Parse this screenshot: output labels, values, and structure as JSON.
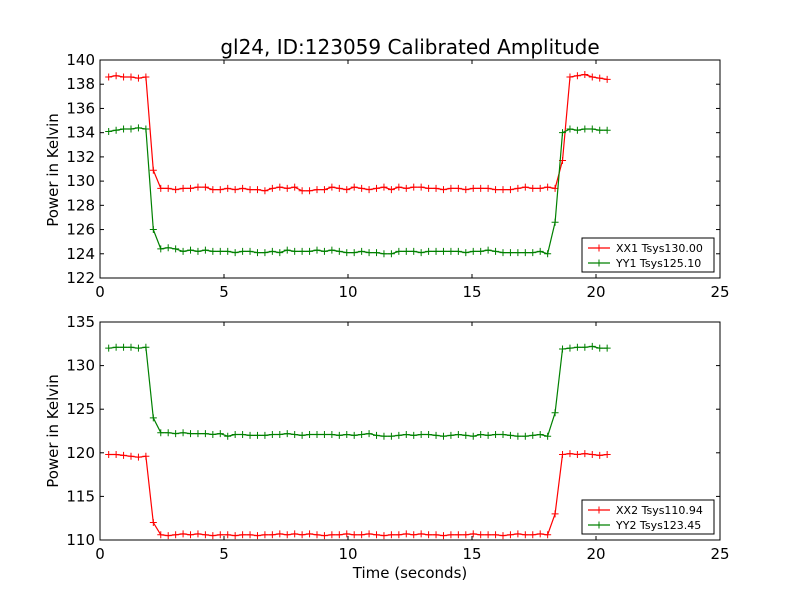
{
  "title": "gl24, ID:123059 Calibrated Amplitude",
  "colors": {
    "red": "#ff0000",
    "green": "#008000"
  },
  "chart_data": [
    {
      "type": "line",
      "title": "gl24, ID:123059 Calibrated Amplitude",
      "xlabel": "",
      "ylabel": "Power in Kelvin",
      "xlim": [
        0,
        25
      ],
      "ylim": [
        122,
        140
      ],
      "xticks": [
        0,
        5,
        10,
        15,
        20,
        25
      ],
      "yticks": [
        122,
        124,
        126,
        128,
        130,
        132,
        134,
        136,
        138,
        140
      ],
      "grid": false,
      "legend": "bottom-right",
      "x": [
        0.35,
        0.65,
        0.95,
        1.25,
        1.55,
        1.85,
        2.15,
        2.45,
        2.75,
        3.05,
        3.35,
        3.65,
        3.95,
        4.25,
        4.55,
        4.85,
        5.15,
        5.45,
        5.75,
        6.05,
        6.35,
        6.65,
        6.95,
        7.25,
        7.55,
        7.85,
        8.15,
        8.45,
        8.75,
        9.05,
        9.35,
        9.65,
        9.95,
        10.25,
        10.55,
        10.85,
        11.15,
        11.45,
        11.75,
        12.05,
        12.35,
        12.65,
        12.95,
        13.25,
        13.55,
        13.85,
        14.15,
        14.45,
        14.75,
        15.05,
        15.35,
        15.65,
        15.95,
        16.25,
        16.55,
        16.85,
        17.15,
        17.45,
        17.75,
        18.05,
        18.35,
        18.65,
        18.95,
        19.25,
        19.55,
        19.85,
        20.15,
        20.45
      ],
      "series": [
        {
          "name": "XX1 Tsys130.00",
          "color": "#ff0000",
          "values": [
            138.6,
            138.7,
            138.6,
            138.6,
            138.5,
            138.6,
            130.9,
            129.4,
            129.4,
            129.3,
            129.4,
            129.4,
            129.5,
            129.5,
            129.3,
            129.3,
            129.4,
            129.3,
            129.4,
            129.3,
            129.3,
            129.2,
            129.4,
            129.5,
            129.4,
            129.5,
            129.2,
            129.2,
            129.3,
            129.3,
            129.5,
            129.4,
            129.3,
            129.5,
            129.4,
            129.3,
            129.4,
            129.5,
            129.3,
            129.5,
            129.4,
            129.5,
            129.5,
            129.4,
            129.4,
            129.3,
            129.4,
            129.4,
            129.3,
            129.4,
            129.4,
            129.4,
            129.3,
            129.3,
            129.3,
            129.4,
            129.5,
            129.4,
            129.4,
            129.5,
            129.4,
            131.7,
            138.6,
            138.7,
            138.8,
            138.6,
            138.5,
            138.4
          ]
        },
        {
          "name": "YY1 Tsys125.10",
          "color": "#008000",
          "values": [
            134.1,
            134.2,
            134.3,
            134.3,
            134.4,
            134.3,
            126.0,
            124.4,
            124.5,
            124.4,
            124.2,
            124.3,
            124.2,
            124.3,
            124.2,
            124.2,
            124.2,
            124.1,
            124.2,
            124.2,
            124.1,
            124.1,
            124.2,
            124.1,
            124.3,
            124.2,
            124.2,
            124.2,
            124.3,
            124.2,
            124.3,
            124.2,
            124.1,
            124.1,
            124.2,
            124.1,
            124.1,
            124.0,
            124.0,
            124.2,
            124.2,
            124.2,
            124.1,
            124.2,
            124.2,
            124.2,
            124.2,
            124.2,
            124.1,
            124.2,
            124.2,
            124.3,
            124.2,
            124.1,
            124.1,
            124.1,
            124.1,
            124.1,
            124.2,
            124.0,
            126.6,
            134.0,
            134.3,
            134.2,
            134.3,
            134.3,
            134.2,
            134.2
          ]
        }
      ]
    },
    {
      "type": "line",
      "title": "",
      "xlabel": "Time (seconds)",
      "ylabel": "Power in Kelvin",
      "xlim": [
        0,
        25
      ],
      "ylim": [
        110,
        135
      ],
      "xticks": [
        0,
        5,
        10,
        15,
        20,
        25
      ],
      "yticks": [
        110,
        115,
        120,
        125,
        130,
        135
      ],
      "grid": false,
      "legend": "bottom-right",
      "x": [
        0.35,
        0.65,
        0.95,
        1.25,
        1.55,
        1.85,
        2.15,
        2.45,
        2.75,
        3.05,
        3.35,
        3.65,
        3.95,
        4.25,
        4.55,
        4.85,
        5.15,
        5.45,
        5.75,
        6.05,
        6.35,
        6.65,
        6.95,
        7.25,
        7.55,
        7.85,
        8.15,
        8.45,
        8.75,
        9.05,
        9.35,
        9.65,
        9.95,
        10.25,
        10.55,
        10.85,
        11.15,
        11.45,
        11.75,
        12.05,
        12.35,
        12.65,
        12.95,
        13.25,
        13.55,
        13.85,
        14.15,
        14.45,
        14.75,
        15.05,
        15.35,
        15.65,
        15.95,
        16.25,
        16.55,
        16.85,
        17.15,
        17.45,
        17.75,
        18.05,
        18.35,
        18.65,
        18.95,
        19.25,
        19.55,
        19.85,
        20.15,
        20.45
      ],
      "series": [
        {
          "name": "XX2 Tsys110.94",
          "color": "#ff0000",
          "values": [
            119.8,
            119.8,
            119.7,
            119.6,
            119.5,
            119.6,
            112.0,
            110.6,
            110.5,
            110.6,
            110.7,
            110.6,
            110.7,
            110.6,
            110.5,
            110.6,
            110.6,
            110.5,
            110.6,
            110.6,
            110.5,
            110.6,
            110.6,
            110.7,
            110.6,
            110.7,
            110.6,
            110.7,
            110.6,
            110.5,
            110.6,
            110.6,
            110.7,
            110.6,
            110.6,
            110.7,
            110.6,
            110.5,
            110.6,
            110.6,
            110.7,
            110.6,
            110.7,
            110.6,
            110.6,
            110.5,
            110.6,
            110.6,
            110.6,
            110.7,
            110.6,
            110.6,
            110.6,
            110.5,
            110.6,
            110.7,
            110.6,
            110.6,
            110.7,
            110.6,
            113.0,
            119.8,
            119.9,
            119.8,
            119.9,
            119.8,
            119.7,
            119.8
          ]
        },
        {
          "name": "YY2 Tsys123.45",
          "color": "#008000",
          "values": [
            132.0,
            132.1,
            132.1,
            132.1,
            132.0,
            132.1,
            124.0,
            122.3,
            122.3,
            122.2,
            122.3,
            122.2,
            122.2,
            122.2,
            122.1,
            122.2,
            121.9,
            122.1,
            122.1,
            122.0,
            122.0,
            122.0,
            122.1,
            122.1,
            122.2,
            122.1,
            122.0,
            122.1,
            122.1,
            122.1,
            122.1,
            122.0,
            122.1,
            122.0,
            122.1,
            122.2,
            122.0,
            121.9,
            121.9,
            122.0,
            122.1,
            122.0,
            122.1,
            122.1,
            122.0,
            121.9,
            122.0,
            122.1,
            122.0,
            121.9,
            122.1,
            122.0,
            122.1,
            122.1,
            122.0,
            121.9,
            121.9,
            122.0,
            122.1,
            121.9,
            124.6,
            131.9,
            132.0,
            132.1,
            132.1,
            132.2,
            132.0,
            132.0
          ]
        }
      ]
    }
  ]
}
